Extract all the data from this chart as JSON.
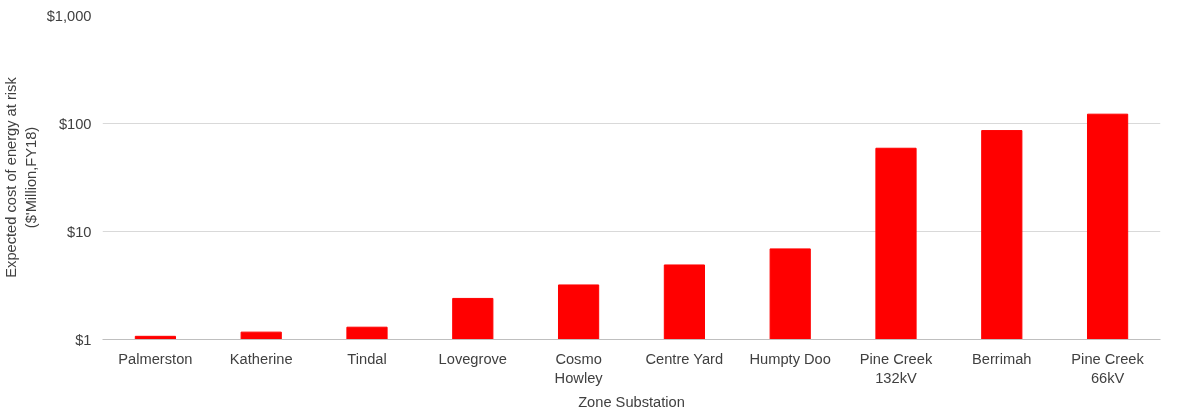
{
  "chart_data": {
    "type": "bar",
    "xlabel": "Zone Substation",
    "ylabel": "Expected cost of energy at risk\n($'Million,FY18)",
    "categories": [
      "Palmerston",
      "Katherine",
      "Tindal",
      "Lovegrove",
      "Cosmo\nHowley",
      "Centre Yard",
      "Humpty Doo",
      "Pine Creek\n132kV",
      "Berrimah",
      "Pine Creek\n66kV"
    ],
    "values": [
      1.07,
      1.17,
      1.3,
      2.4,
      3.2,
      4.9,
      6.9,
      59,
      86,
      122
    ],
    "color": "#ff0000",
    "log": true,
    "ylim": [
      1,
      1000
    ],
    "yticks": [
      {
        "value": 1,
        "label": "$1"
      },
      {
        "value": 10,
        "label": "$10"
      },
      {
        "value": 100,
        "label": "$100"
      },
      {
        "value": 1000,
        "label": "$1,000"
      }
    ],
    "grid": "y"
  }
}
